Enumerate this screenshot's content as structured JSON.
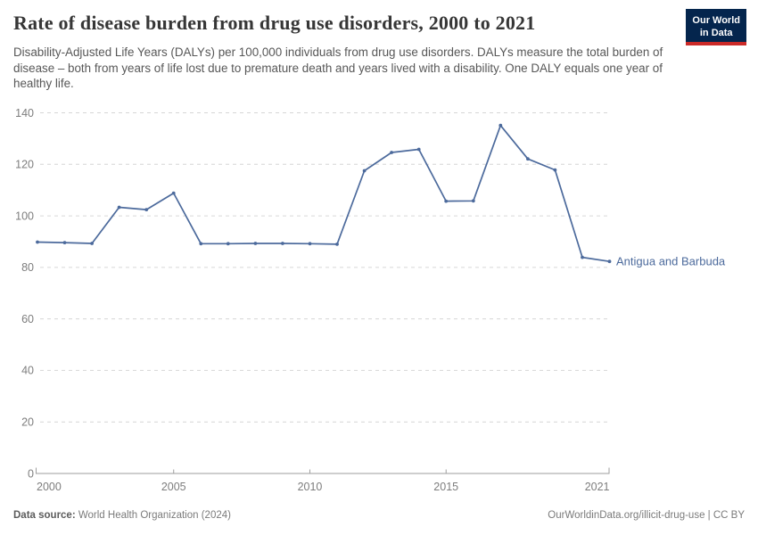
{
  "header": {
    "title": "Rate of disease burden from drug use disorders, 2000 to 2021",
    "subtitle": "Disability-Adjusted Life Years (DALYs) per 100,000 individuals from drug use disorders. DALYs measure the total burden of disease – both from years of life lost due to premature death and years lived with a disability. One DALY equals one year of healthy life.",
    "logo": {
      "line1": "Our World",
      "line2": "in Data"
    }
  },
  "chart_data": {
    "type": "line",
    "title": "Rate of disease burden from drug use disorders, 2000 to 2021",
    "x": [
      2000,
      2001,
      2002,
      2003,
      2004,
      2005,
      2006,
      2007,
      2008,
      2009,
      2010,
      2011,
      2012,
      2013,
      2014,
      2015,
      2016,
      2017,
      2018,
      2019,
      2020,
      2021
    ],
    "series": [
      {
        "name": "Antigua and Barbuda",
        "color": "#4c6a9c",
        "values": [
          89.8,
          89.6,
          89.3,
          103.3,
          102.4,
          108.8,
          89.2,
          89.2,
          89.3,
          89.3,
          89.2,
          89.0,
          117.5,
          124.6,
          125.8,
          105.7,
          105.8,
          135.1,
          122.1,
          117.8,
          83.9,
          82.3
        ]
      }
    ],
    "xlabel": "",
    "ylabel": "",
    "ylim": [
      0,
      140
    ],
    "yticks": [
      0,
      20,
      40,
      60,
      80,
      100,
      120,
      140
    ],
    "xticks": [
      2000,
      2005,
      2010,
      2015,
      2021
    ],
    "grid": "horizontal-dashed",
    "legend_position": "end-of-line-label",
    "marker": "dot"
  },
  "colors": {
    "line": "#4c6a9c",
    "grid": "#d6d6d6",
    "axis": "#9e9e9e",
    "tick_label": "#7d7d7d",
    "logo_bg": "#04254d",
    "logo_stripe": "#cb2a28"
  },
  "footer": {
    "source_label": "Data source:",
    "source_value": " World Health Organization (2024)",
    "attribution": "OurWorldinData.org/illicit-drug-use | CC BY"
  }
}
